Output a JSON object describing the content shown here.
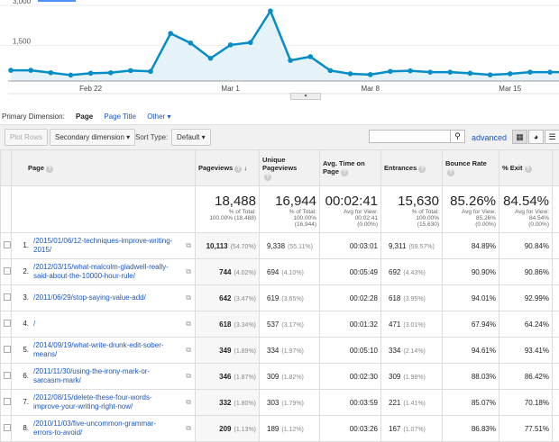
{
  "chart_data": {
    "type": "area",
    "y_ticks": [
      "3,000",
      "1,500"
    ],
    "ylim": [
      0,
      3000
    ],
    "x_ticks": [
      "Feb 22",
      "Mar 1",
      "Mar 8",
      "Mar 15"
    ],
    "x": [
      "Feb 18",
      "Feb 19",
      "Feb 20",
      "Feb 21",
      "Feb 22",
      "Feb 23",
      "Feb 24",
      "Feb 25",
      "Feb 26",
      "Feb 27",
      "Feb 28",
      "Mar 1",
      "Mar 2",
      "Mar 3",
      "Mar 4",
      "Mar 5",
      "Mar 6",
      "Mar 7",
      "Mar 8",
      "Mar 9",
      "Mar 10",
      "Mar 11",
      "Mar 12",
      "Mar 13",
      "Mar 14",
      "Mar 15",
      "Mar 16",
      "Mar 17"
    ],
    "values": [
      570,
      570,
      480,
      390,
      460,
      480,
      560,
      530,
      1950,
      1590,
      1020,
      1520,
      1610,
      2790,
      940,
      1080,
      560,
      440,
      410,
      530,
      550,
      500,
      500,
      460,
      400,
      440,
      500,
      500
    ],
    "color": "#058dc7",
    "fill": "#e5f3f9",
    "grid": true
  },
  "dimension": {
    "label": "Primary Dimension:",
    "options": [
      "Page",
      "Page Title",
      "Other"
    ],
    "selected": "Page"
  },
  "toolbar": {
    "plot_rows": "Plot Rows",
    "secondary": "Secondary dimension",
    "sort_label": "Sort Type:",
    "sort_value": "Default",
    "search_value": "",
    "advanced": "advanced"
  },
  "columns": [
    "Page",
    "Pageviews",
    "Unique Pageviews",
    "Avg. Time on Page",
    "Entrances",
    "Bounce Rate",
    "% Exit"
  ],
  "totals": {
    "pageviews": {
      "value": "18,488",
      "l1": "% of Total:",
      "l2": "100.00% (18,488)"
    },
    "unique": {
      "value": "16,944",
      "l1": "% of Total:",
      "l2": "100.00%",
      "l3": "(16,944)"
    },
    "time": {
      "value": "00:02:41",
      "l1": "Avg for View:",
      "l2": "00:02:41",
      "l3": "(0.00%)"
    },
    "entrances": {
      "value": "15,630",
      "l1": "% of Total:",
      "l2": "100.00%",
      "l3": "(15,630)"
    },
    "bounce": {
      "value": "85.26%",
      "l1": "Avg for View:",
      "l2": "85.26%",
      "l3": "(0.00%)"
    },
    "exit": {
      "value": "84.54%",
      "l1": "Avg for View:",
      "l2": "84.54%",
      "l3": "(0.00%)"
    }
  },
  "rows": [
    {
      "n": "1.",
      "page": "/2015/01/06/12-techniques-improve-writing-2015/",
      "pv": "10,113",
      "pvp": "(54.70%)",
      "u": "9,338",
      "up": "(55.11%)",
      "t": "00:03:01",
      "e": "9,311",
      "ep": "(59.57%)",
      "b": "84.89%",
      "x": "90.84%"
    },
    {
      "n": "2.",
      "page": "/2012/03/15/what-malcolm-gladwell-really-said-about-the-10000-hour-rule/",
      "pv": "744",
      "pvp": "(4.02%)",
      "u": "694",
      "up": "(4.10%)",
      "t": "00:05:49",
      "e": "692",
      "ep": "(4.43%)",
      "b": "90.90%",
      "x": "90.86%"
    },
    {
      "n": "3.",
      "page": "/2011/06/29/stop-saying-value-add/",
      "pv": "642",
      "pvp": "(3.47%)",
      "u": "619",
      "up": "(3.65%)",
      "t": "00:02:28",
      "e": "618",
      "ep": "(3.95%)",
      "b": "94.01%",
      "x": "92.99%"
    },
    {
      "n": "4.",
      "page": "/",
      "pv": "618",
      "pvp": "(3.34%)",
      "u": "537",
      "up": "(3.17%)",
      "t": "00:01:32",
      "e": "471",
      "ep": "(3.01%)",
      "b": "67.94%",
      "x": "64.24%"
    },
    {
      "n": "5.",
      "page": "/2014/09/19/what-write-drunk-edit-sober-means/",
      "pv": "349",
      "pvp": "(1.89%)",
      "u": "334",
      "up": "(1.97%)",
      "t": "00:05:10",
      "e": "334",
      "ep": "(2.14%)",
      "b": "94.61%",
      "x": "93.41%"
    },
    {
      "n": "6.",
      "page": "/2011/11/30/using-the-irony-mark-or-sarcasm-mark/",
      "pv": "346",
      "pvp": "(1.87%)",
      "u": "309",
      "up": "(1.82%)",
      "t": "00:02:30",
      "e": "309",
      "ep": "(1.98%)",
      "b": "88.03%",
      "x": "86.42%"
    },
    {
      "n": "7.",
      "page": "/2012/08/15/delete-these-four-words-improve-your-writing-right-now/",
      "pv": "332",
      "pvp": "(1.80%)",
      "u": "303",
      "up": "(1.79%)",
      "t": "00:03:59",
      "e": "221",
      "ep": "(1.41%)",
      "b": "85.07%",
      "x": "70.18%"
    },
    {
      "n": "8.",
      "page": "/2010/11/03/five-uncommon-grammar-errors-to-avoid/",
      "pv": "209",
      "pvp": "(1.13%)",
      "u": "189",
      "up": "(1.12%)",
      "t": "00:03:26",
      "e": "167",
      "ep": "(1.07%)",
      "b": "86.83%",
      "x": "77.51%"
    }
  ]
}
